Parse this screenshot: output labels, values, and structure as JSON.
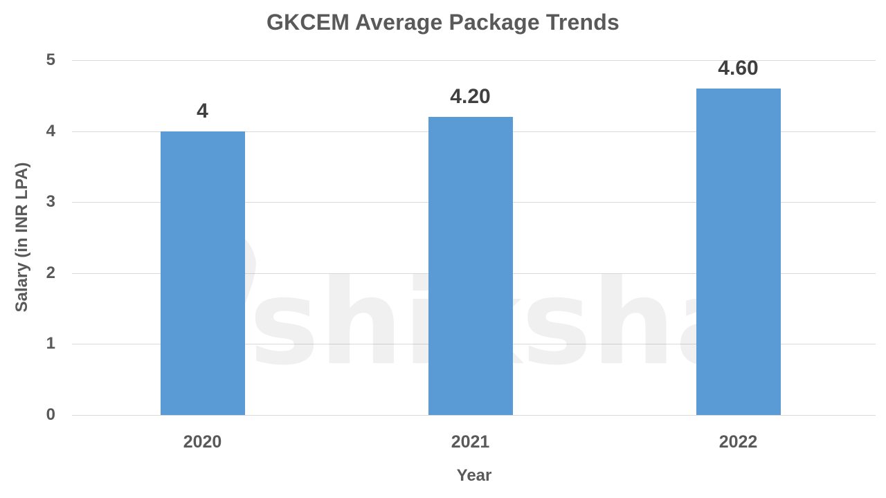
{
  "chart_data": {
    "type": "bar",
    "title": "GKCEM Average Package Trends",
    "xlabel": "Year",
    "ylabel": "Salary (in INR LPA)",
    "categories": [
      "2020",
      "2021",
      "2022"
    ],
    "values": [
      4.0,
      4.2,
      4.6
    ],
    "data_labels": [
      "4",
      "4.20",
      "4.60"
    ],
    "ylim": [
      0,
      5
    ],
    "yticks": [
      "0",
      "1",
      "2",
      "3",
      "4",
      "5"
    ],
    "grid": true,
    "legend": null,
    "bar_color": "#5b9bd5"
  },
  "watermark": {
    "text": "shiksha"
  }
}
